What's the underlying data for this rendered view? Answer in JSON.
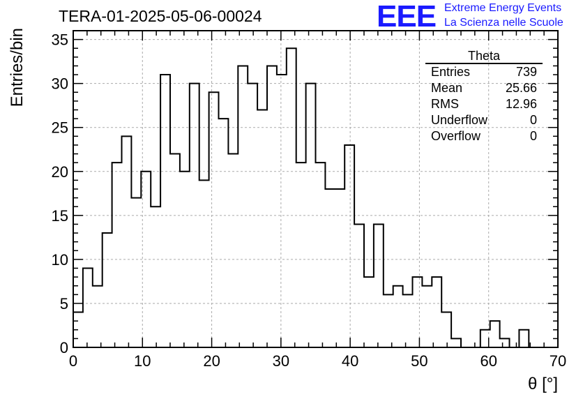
{
  "title": "TERA-01-2025-05-06-00024",
  "logo": {
    "mark": "EEE",
    "line1": "Extreme Energy Events",
    "line2": "La Scienza nelle Scuole",
    "color": "#1a1aff"
  },
  "stats": {
    "title": "Theta",
    "rows": [
      {
        "label": "Entries",
        "value": "739"
      },
      {
        "label": "Mean",
        "value": "25.66"
      },
      {
        "label": "RMS",
        "value": "12.96"
      },
      {
        "label": "Underflow",
        "value": "0"
      },
      {
        "label": "Overflow",
        "value": "0"
      }
    ]
  },
  "chart_data": {
    "type": "bar",
    "histogram": "step",
    "title": "TERA-01-2025-05-06-00024",
    "xlabel": "θ [°]",
    "ylabel": "Entries/bin",
    "xlim": [
      0,
      70
    ],
    "ylim": [
      0,
      36
    ],
    "grid": true,
    "bin_width": 1.4,
    "xticks": [
      0,
      10,
      20,
      30,
      40,
      50,
      60,
      70
    ],
    "yticks": [
      0,
      5,
      10,
      15,
      20,
      25,
      30,
      35
    ],
    "values": [
      4,
      9,
      7,
      13,
      21,
      24,
      17,
      20,
      16,
      31,
      22,
      20,
      30,
      19,
      29,
      26,
      22,
      32,
      30,
      27,
      32,
      31,
      34,
      21,
      30,
      21,
      18,
      18,
      23,
      14,
      8,
      14,
      6,
      7,
      6,
      8,
      7,
      8,
      4,
      1,
      0,
      0,
      2,
      3,
      1,
      0,
      2,
      0,
      0,
      0
    ]
  }
}
